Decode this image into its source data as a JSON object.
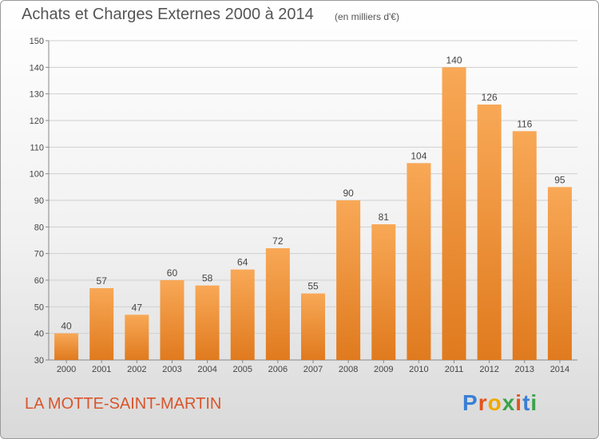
{
  "header": {
    "title": "Achats et Charges Externes 2000 à 2014",
    "unit": "(en milliers d'€)"
  },
  "footer": {
    "commune": "LA MOTTE-SAINT-MARTIN",
    "brand_letters": [
      "P",
      "r",
      "o",
      "x",
      "i",
      "t",
      "i"
    ],
    "brand_colors": [
      "#3a7fd5",
      "#e3541c",
      "#f0a800",
      "#3aa34a",
      "#e3541c",
      "#3a7fd5",
      "#3aa34a"
    ]
  },
  "colors": {
    "bar_light": "#f8a856",
    "bar_dark": "#e07a1e",
    "grid": "#cfcfcf",
    "axis_text": "#444444"
  },
  "chart_data": {
    "type": "bar",
    "title": "Achats et Charges Externes 2000 à 2014",
    "subtitle": "(en milliers d'€)",
    "categories": [
      "2000",
      "2001",
      "2002",
      "2003",
      "2004",
      "2005",
      "2006",
      "2007",
      "2008",
      "2009",
      "2010",
      "2011",
      "2012",
      "2013",
      "2014"
    ],
    "values": [
      40,
      57,
      47,
      60,
      58,
      64,
      72,
      55,
      90,
      81,
      104,
      140,
      126,
      116,
      95
    ],
    "ylim": [
      30,
      150
    ],
    "yticks": [
      30,
      40,
      50,
      60,
      70,
      80,
      90,
      100,
      110,
      120,
      130,
      140,
      150
    ],
    "grid": true
  }
}
